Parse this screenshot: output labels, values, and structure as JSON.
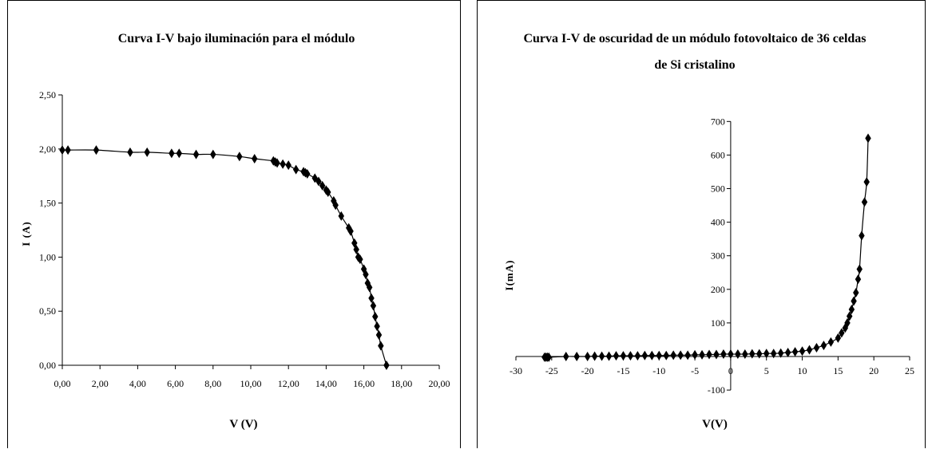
{
  "chart_data": [
    {
      "type": "line",
      "title": "Curva I-V bajo iluminación para el módulo",
      "xlabel": "V (V)",
      "ylabel": "I (A)",
      "xlim": [
        0,
        20
      ],
      "ylim": [
        0,
        2.5
      ],
      "x_ticks": [
        "0,00",
        "2,00",
        "4,00",
        "6,00",
        "8,00",
        "10,00",
        "12,00",
        "14,00",
        "16,00",
        "18,00",
        "20,00"
      ],
      "y_ticks": [
        "0,00",
        "0,50",
        "1,00",
        "1,50",
        "2,00",
        "2,50"
      ],
      "marker": "diamond",
      "series": [
        {
          "x": [
            0.0,
            0.3,
            1.8,
            3.6,
            4.5,
            5.8,
            6.2,
            7.1,
            8.0,
            9.4,
            10.2,
            11.2,
            11.3,
            11.4,
            11.7,
            12.0,
            12.4,
            12.8,
            12.9,
            13.0,
            13.4,
            13.6,
            13.8,
            14.0,
            14.1,
            14.4,
            14.5,
            14.8,
            15.2,
            15.3,
            15.5,
            15.6,
            15.7,
            15.8,
            16.0,
            16.1,
            16.2,
            16.3,
            16.4,
            16.5,
            16.6,
            16.7,
            16.8,
            16.9,
            17.2
          ],
          "y": [
            1.99,
            1.99,
            1.99,
            1.97,
            1.97,
            1.96,
            1.96,
            1.95,
            1.95,
            1.93,
            1.91,
            1.89,
            1.88,
            1.87,
            1.86,
            1.85,
            1.81,
            1.79,
            1.78,
            1.77,
            1.73,
            1.7,
            1.66,
            1.62,
            1.6,
            1.52,
            1.48,
            1.38,
            1.27,
            1.24,
            1.13,
            1.07,
            1.0,
            0.98,
            0.89,
            0.84,
            0.76,
            0.72,
            0.62,
            0.55,
            0.45,
            0.36,
            0.28,
            0.18,
            0.0
          ]
        }
      ]
    },
    {
      "type": "line",
      "title": "Curva I-V de oscuridad de un módulo fotovoltaico de 36 celdas de Si cristalino",
      "title_lines": [
        "Curva I-V de oscuridad de un módulo fotovoltaico de 36 celdas",
        "de Si cristalino"
      ],
      "xlabel": "V(V)",
      "ylabel": "I(mA)",
      "xlim": [
        -30,
        25
      ],
      "ylim": [
        -100,
        700
      ],
      "x_ticks": [
        "-30",
        "-25",
        "-20",
        "-15",
        "-10",
        "-5",
        "0",
        "5",
        "10",
        "15",
        "20",
        "25"
      ],
      "y_ticks": [
        "-100",
        "100",
        "200",
        "300",
        "400",
        "500",
        "600",
        "700"
      ],
      "marker": "diamond",
      "series": [
        {
          "x": [
            -26.0,
            -25.8,
            -25.6,
            -25.4,
            -23.0,
            -21.5,
            -20.0,
            -19.0,
            -18.0,
            -17.0,
            -16.0,
            -15.0,
            -14.0,
            -13.0,
            -12.0,
            -11.0,
            -10.0,
            -9.0,
            -8.0,
            -7.0,
            -6.0,
            -5.0,
            -4.0,
            -3.0,
            -2.0,
            -1.0,
            0.0,
            1.0,
            2.0,
            3.0,
            4.0,
            5.0,
            6.0,
            7.0,
            8.0,
            9.0,
            10.0,
            11.0,
            12.0,
            13.0,
            14.0,
            15.0,
            15.5,
            16.0,
            16.3,
            16.6,
            16.9,
            17.2,
            17.5,
            17.8,
            18.0,
            18.3,
            18.7,
            19.0,
            19.2
          ],
          "y": [
            -2,
            -2,
            -2,
            -2,
            0,
            0,
            0,
            1,
            1,
            1,
            2,
            2,
            2,
            2,
            3,
            3,
            3,
            3,
            4,
            4,
            4,
            5,
            5,
            6,
            6,
            7,
            7,
            7,
            7,
            8,
            8,
            9,
            9,
            10,
            12,
            14,
            16,
            20,
            26,
            33,
            43,
            55,
            70,
            85,
            100,
            120,
            140,
            165,
            190,
            230,
            260,
            360,
            460,
            520,
            650
          ]
        }
      ]
    }
  ]
}
